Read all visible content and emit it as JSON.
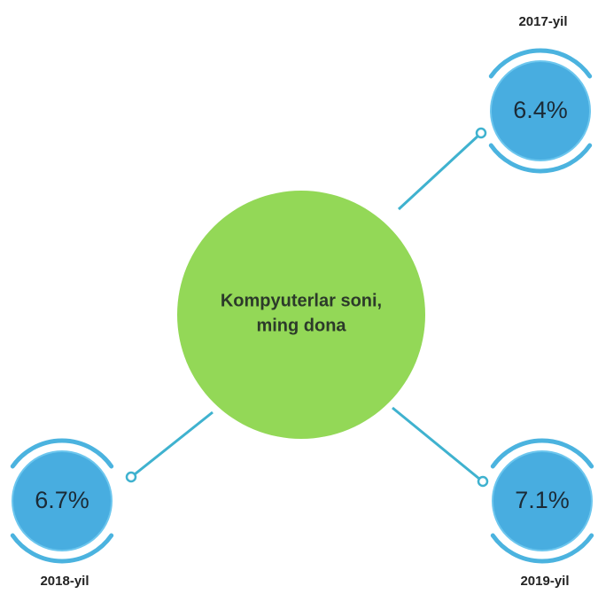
{
  "center": {
    "lines": [
      "Kompyuterlar soni,",
      "ming dona"
    ]
  },
  "nodes": [
    {
      "year": "2017-yil",
      "value": "6.4%"
    },
    {
      "year": "2018-yil",
      "value": "6.7%"
    },
    {
      "year": "2019-yil",
      "value": "7.1%"
    }
  ]
}
